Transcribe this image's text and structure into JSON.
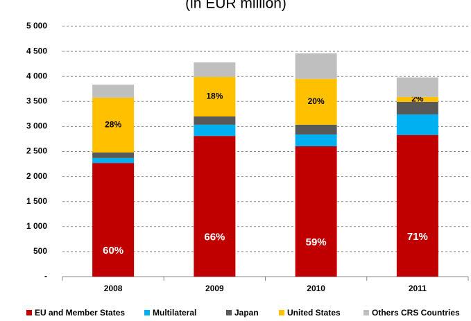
{
  "chart_data": {
    "type": "stacked_bar",
    "title": "(in EUR million)",
    "categories": [
      "2008",
      "2009",
      "2010",
      "2011"
    ],
    "series": [
      {
        "name": "EU and Member States",
        "color": "#c00000",
        "values": [
          2270,
          2810,
          2605,
          2830
        ],
        "share_labels": [
          "60%",
          "66%",
          "59%",
          "71%"
        ]
      },
      {
        "name": "Multilateral",
        "color": "#00b0f0",
        "values": [
          100,
          225,
          235,
          410
        ]
      },
      {
        "name": "Japan",
        "color": "#595959",
        "values": [
          110,
          165,
          195,
          250
        ]
      },
      {
        "name": "United States",
        "color": "#ffc000",
        "values": [
          1095,
          790,
          915,
          100
        ],
        "share_labels": [
          "28%",
          "18%",
          "20%",
          "2%"
        ]
      },
      {
        "name": "Others CRS Countries",
        "color": "#bfbfbf",
        "values": [
          260,
          290,
          510,
          390
        ]
      }
    ],
    "ylim": [
      0,
      5000
    ],
    "yticks": [
      {
        "value": 0,
        "label": "-"
      },
      500,
      {
        "value": 1000,
        "label": "1 000"
      },
      {
        "value": 1500,
        "label": "1 500"
      },
      {
        "value": 2000,
        "label": "2 000"
      },
      {
        "value": 2500,
        "label": "2 500"
      },
      {
        "value": 3000,
        "label": "3 000"
      },
      {
        "value": 3500,
        "label": "3 500"
      },
      {
        "value": 4000,
        "label": "4 000"
      },
      {
        "value": 4500,
        "label": "4 500"
      },
      {
        "value": 5000,
        "label": "5 000"
      }
    ],
    "grid": true,
    "legend": "bottom"
  }
}
